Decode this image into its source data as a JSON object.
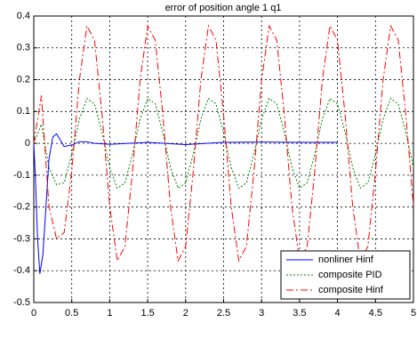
{
  "chart_data": {
    "type": "line",
    "title": "error of position angle 1 q1",
    "xlim": [
      0,
      5
    ],
    "xticks": [
      0,
      0.5,
      1,
      1.5,
      2,
      2.5,
      3,
      3.5,
      4,
      4.5,
      5
    ],
    "ylim": [
      -0.5,
      0.4
    ],
    "yticks": [
      -0.5,
      -0.4,
      -0.3,
      -0.2,
      -0.1,
      0,
      0.1,
      0.2,
      0.3,
      0.4
    ],
    "grid": true,
    "legend": "lower right",
    "series": [
      {
        "name": "nonliner Hinf",
        "color": "#0000ff",
        "dash": "none",
        "x": [
          0,
          0.02,
          0.05,
          0.08,
          0.12,
          0.16,
          0.2,
          0.25,
          0.3,
          0.35,
          0.4,
          0.5,
          0.6,
          0.7,
          0.8,
          1,
          1.5,
          2,
          2.5,
          3,
          3.5,
          4
        ],
        "values": [
          0,
          -0.1,
          -0.3,
          -0.41,
          -0.35,
          -0.2,
          -0.05,
          0.02,
          0.03,
          0.01,
          -0.01,
          -0.005,
          0.005,
          0.005,
          0,
          -0.003,
          0.003,
          -0.004,
          0.003,
          0.004,
          0.003,
          0.003
        ]
      },
      {
        "name": "composite PID",
        "color": "#008000",
        "dash": "2,2",
        "x": [
          0,
          0.1,
          0.2,
          0.3,
          0.4,
          0.5,
          0.6,
          0.7,
          0.8,
          0.9,
          1,
          1.1,
          1.2,
          1.3,
          1.4,
          1.5,
          1.6,
          1.7,
          1.8,
          1.9,
          2,
          2.1,
          2.2,
          2.3,
          2.4,
          2.5,
          2.6,
          2.7,
          2.8,
          2.9,
          3,
          3.1,
          3.2,
          3.3,
          3.4,
          3.5,
          3.6,
          3.7,
          3.8,
          3.9,
          4,
          4.1,
          4.2,
          4.3,
          4.4,
          4.5,
          4.6,
          4.7,
          4.8,
          4.9,
          5
        ],
        "values": [
          0,
          0.06,
          -0.076,
          -0.13,
          -0.124,
          -0.034,
          0.076,
          0.141,
          0.124,
          0.034,
          -0.076,
          -0.141,
          -0.124,
          -0.034,
          0.076,
          0.141,
          0.124,
          0.034,
          -0.076,
          -0.141,
          -0.124,
          -0.034,
          0.076,
          0.141,
          0.124,
          0.034,
          -0.076,
          -0.141,
          -0.124,
          -0.034,
          0.076,
          0.141,
          0.124,
          0.034,
          -0.076,
          -0.141,
          -0.124,
          -0.034,
          0.076,
          0.141,
          0.124,
          0.034,
          -0.076,
          -0.141,
          -0.124,
          -0.034,
          0.076,
          0.141,
          0.124,
          0.034,
          -0.076
        ]
      },
      {
        "name": "composite Hinf",
        "color": "#ff0000",
        "dash": "8,3,2,3",
        "x": [
          0,
          0.1,
          0.2,
          0.3,
          0.4,
          0.5,
          0.6,
          0.7,
          0.8,
          0.9,
          1,
          1.1,
          1.2,
          1.3,
          1.4,
          1.5,
          1.6,
          1.7,
          1.8,
          1.9,
          2,
          2.1,
          2.2,
          2.3,
          2.4,
          2.5,
          2.6,
          2.7,
          2.8,
          2.9,
          3,
          3.1,
          3.2,
          3.3,
          3.4,
          3.5,
          3.6,
          3.7,
          3.8,
          3.9,
          4,
          4.1,
          4.2,
          4.3,
          4.4,
          4.5,
          4.6,
          4.7,
          4.8,
          4.9,
          5
        ],
        "values": [
          0,
          0.15,
          -0.198,
          -0.3,
          -0.28,
          -0.089,
          0.198,
          0.369,
          0.324,
          0.089,
          -0.198,
          -0.369,
          -0.324,
          -0.089,
          0.198,
          0.369,
          0.324,
          0.089,
          -0.198,
          -0.369,
          -0.324,
          -0.089,
          0.198,
          0.369,
          0.324,
          0.089,
          -0.198,
          -0.369,
          -0.324,
          -0.089,
          0.198,
          0.369,
          0.324,
          0.089,
          -0.198,
          -0.369,
          -0.324,
          -0.089,
          0.198,
          0.369,
          0.324,
          0.089,
          -0.198,
          -0.369,
          -0.324,
          -0.089,
          0.198,
          0.369,
          0.324,
          0.089,
          -0.198
        ]
      }
    ]
  }
}
